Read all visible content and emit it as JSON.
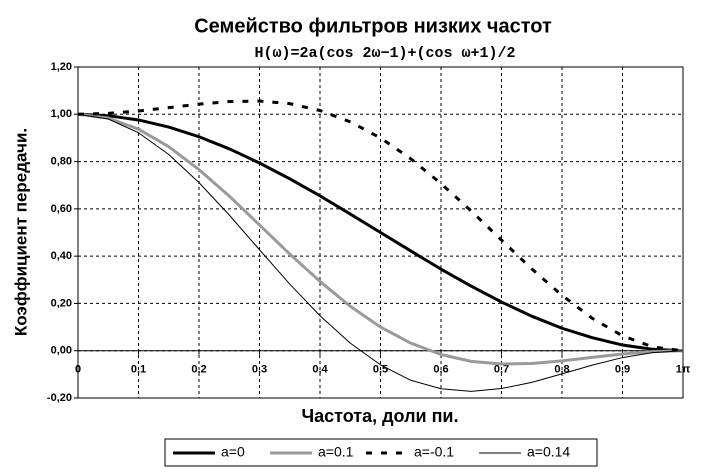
{
  "chart_data": {
    "type": "line",
    "title": "Семейство фильтров низких частот",
    "subtitle": "H(ω)=2a(cos 2ω−1)+(cos ω+1)/2",
    "x_label": "Частота, доли пи.",
    "y_label": "Коэффициент передачи.",
    "x": [
      0,
      0.05,
      0.1,
      0.15,
      0.2,
      0.25,
      0.3,
      0.35,
      0.4,
      0.45,
      0.5,
      0.55,
      0.6,
      0.65,
      0.7,
      0.75,
      0.8,
      0.85,
      0.9,
      0.95,
      1
    ],
    "series": [
      {
        "name": "a=0",
        "color": "#000000",
        "width": 3,
        "dash": "none",
        "values": [
          1,
          0.994,
          0.976,
          0.946,
          0.905,
          0.854,
          0.794,
          0.727,
          0.655,
          0.578,
          0.5,
          0.422,
          0.345,
          0.273,
          0.206,
          0.146,
          0.095,
          0.055,
          0.024,
          0.006,
          0
        ]
      },
      {
        "name": "a=0.1",
        "color": "#9a9a9a",
        "width": 3,
        "dash": "none",
        "values": [
          1,
          0.984,
          0.937,
          0.863,
          0.766,
          0.654,
          0.532,
          0.409,
          0.293,
          0.188,
          0.1,
          0.032,
          -0.016,
          -0.045,
          -0.056,
          -0.054,
          -0.043,
          -0.028,
          -0.014,
          -0.004,
          0
        ]
      },
      {
        "name": "a=-0.1",
        "color": "#000000",
        "width": 3,
        "dash": "6 9",
        "values": [
          1,
          1.004,
          1.014,
          1.028,
          1.043,
          1.054,
          1.056,
          1.045,
          1.016,
          0.968,
          0.9,
          0.812,
          0.707,
          0.591,
          0.468,
          0.346,
          0.234,
          0.137,
          0.063,
          0.016,
          0
        ]
      },
      {
        "name": "a=0.14",
        "color": "#000000",
        "width": 1,
        "dash": "none",
        "values": [
          1,
          0.98,
          0.922,
          0.83,
          0.711,
          0.574,
          0.427,
          0.282,
          0.148,
          0.032,
          -0.06,
          -0.125,
          -0.161,
          -0.172,
          -0.16,
          -0.134,
          -0.098,
          -0.061,
          -0.029,
          -0.008,
          0
        ]
      }
    ],
    "xlim": [
      0,
      1
    ],
    "xticks": [
      0,
      {
        "value": 0.1,
        "label": "0,1"
      },
      {
        "value": 0.2,
        "label": "0,2"
      },
      {
        "value": 0.3,
        "label": "0,3"
      },
      {
        "value": 0.4,
        "label": "0,4"
      },
      {
        "value": 0.5,
        "label": "0,5"
      },
      {
        "value": 0.6,
        "label": "0,6"
      },
      {
        "value": 0.7,
        "label": "0,7"
      },
      {
        "value": 0.8,
        "label": "0,8"
      },
      {
        "value": 0.9,
        "label": "0,9"
      },
      {
        "value": 1,
        "label": "1π"
      }
    ],
    "ylim": [
      -0.2,
      1.2
    ],
    "yticks": [
      {
        "value": -0.2,
        "label": "-0,20"
      },
      {
        "value": 0,
        "label": "0,00"
      },
      {
        "value": 0.2,
        "label": "0,20"
      },
      {
        "value": 0.4,
        "label": "0,40"
      },
      {
        "value": 0.6,
        "label": "0,60"
      },
      {
        "value": 0.8,
        "label": "0,80"
      },
      {
        "value": 1,
        "label": "1,00"
      },
      {
        "value": 1.2,
        "label": "1,20"
      }
    ],
    "grid": true,
    "legend": "bottom"
  }
}
